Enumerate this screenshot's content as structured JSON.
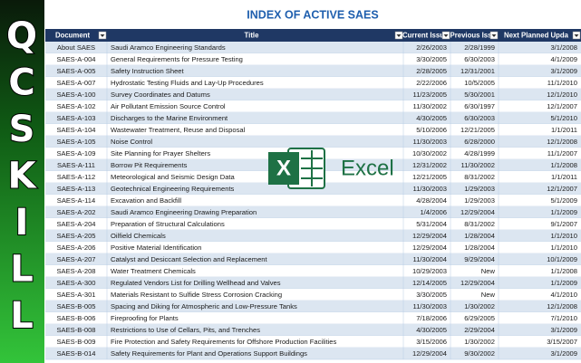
{
  "banner": {
    "letters": [
      "Q",
      "C",
      "S",
      "K",
      "I",
      "L",
      "L"
    ]
  },
  "logo": {
    "letter": "X",
    "text": "Excel"
  },
  "table": {
    "title": "INDEX OF ACTIVE SAES",
    "headers": [
      "Document",
      "Title",
      "Current Issu",
      "Previous Iss",
      "Next Planned Upda"
    ],
    "rows": [
      [
        "About SAES",
        "Saudi Aramco Engineering Standards",
        "2/26/2003",
        "2/28/1999",
        "3/1/2008"
      ],
      [
        "SAES-A-004",
        "General Requirements for Pressure Testing",
        "3/30/2005",
        "6/30/2003",
        "4/1/2009"
      ],
      [
        "SAES-A-005",
        "Safety Instruction Sheet",
        "2/28/2005",
        "12/31/2001",
        "3/1/2009"
      ],
      [
        "SAES-A-007",
        "Hydrostatic Testing Fluids and Lay-Up Procedures",
        "2/22/2006",
        "10/5/2005",
        "11/1/2010"
      ],
      [
        "SAES-A-100",
        "Survey Coordinates and Datums",
        "11/23/2005",
        "5/30/2001",
        "12/1/2010"
      ],
      [
        "SAES-A-102",
        "Air Pollutant Emission Source Control",
        "11/30/2002",
        "6/30/1997",
        "12/1/2007"
      ],
      [
        "SAES-A-103",
        "Discharges to the Marine Environment",
        "4/30/2005",
        "6/30/2003",
        "5/1/2010"
      ],
      [
        "SAES-A-104",
        "Wastewater Treatment, Reuse and Disposal",
        "5/10/2006",
        "12/21/2005",
        "1/1/2011"
      ],
      [
        "SAES-A-105",
        "Noise Control",
        "11/30/2003",
        "6/28/2000",
        "12/1/2008"
      ],
      [
        "SAES-A-109",
        "Site Planning for Prayer Shelters",
        "10/30/2002",
        "4/28/1999",
        "11/1/2007"
      ],
      [
        "SAES-A-111",
        "Borrow Pit Requirements",
        "12/31/2002",
        "11/30/2002",
        "1/1/2008"
      ],
      [
        "SAES-A-112",
        "Meteorological and Seismic Design Data",
        "12/21/2005",
        "8/31/2002",
        "1/1/2011"
      ],
      [
        "SAES-A-113",
        "Geotechnical Engineering Requirements",
        "11/30/2003",
        "1/29/2003",
        "12/1/2007"
      ],
      [
        "SAES-A-114",
        "Excavation and Backfill",
        "4/28/2004",
        "1/29/2003",
        "5/1/2009"
      ],
      [
        "SAES-A-202",
        "Saudi Aramco Engineering Drawing Preparation",
        "1/4/2006",
        "12/29/2004",
        "1/1/2009"
      ],
      [
        "SAES-A-204",
        "Preparation of Structural Calculations",
        "5/31/2004",
        "8/31/2002",
        "9/1/2007"
      ],
      [
        "SAES-A-205",
        "Oilfield Chemicals",
        "12/29/2004",
        "1/28/2004",
        "1/1/2010"
      ],
      [
        "SAES-A-206",
        "Positive Material Identification",
        "12/29/2004",
        "1/28/2004",
        "1/1/2010"
      ],
      [
        "SAES-A-207",
        "Catalyst and Desiccant Selection and Replacement",
        "11/30/2004",
        "9/29/2004",
        "10/1/2009"
      ],
      [
        "SAES-A-208",
        "Water Treatment Chemicals",
        "10/29/2003",
        "New",
        "1/1/2008"
      ],
      [
        "SAES-A-300",
        "Regulated Vendors List for Drilling Wellhead and Valves",
        "12/14/2005",
        "12/29/2004",
        "1/1/2009"
      ],
      [
        "SAES-A-301",
        "Materials Resistant to Sulfide Stress Corrosion Cracking",
        "3/30/2005",
        "New",
        "4/1/2010"
      ],
      [
        "SAES-B-005",
        "Spacing and Diking for Atmospheric and Low-Pressure Tanks",
        "11/30/2003",
        "1/30/2002",
        "12/1/2008"
      ],
      [
        "SAES-B-006",
        "Fireproofing for Plants",
        "7/18/2006",
        "6/29/2005",
        "7/1/2010"
      ],
      [
        "SAES-B-008",
        "Restrictions to Use of Cellars, Pits, and Trenches",
        "4/30/2005",
        "2/29/2004",
        "3/1/2009"
      ],
      [
        "SAES-B-009",
        "Fire Protection and Safety Requirements for Offshore Production Facilities",
        "3/15/2006",
        "1/30/2002",
        "3/15/2007"
      ],
      [
        "SAES-B-014",
        "Safety Requirements for Plant and Operations Support Buildings",
        "12/29/2004",
        "9/30/2002",
        "3/1/2009"
      ]
    ]
  }
}
